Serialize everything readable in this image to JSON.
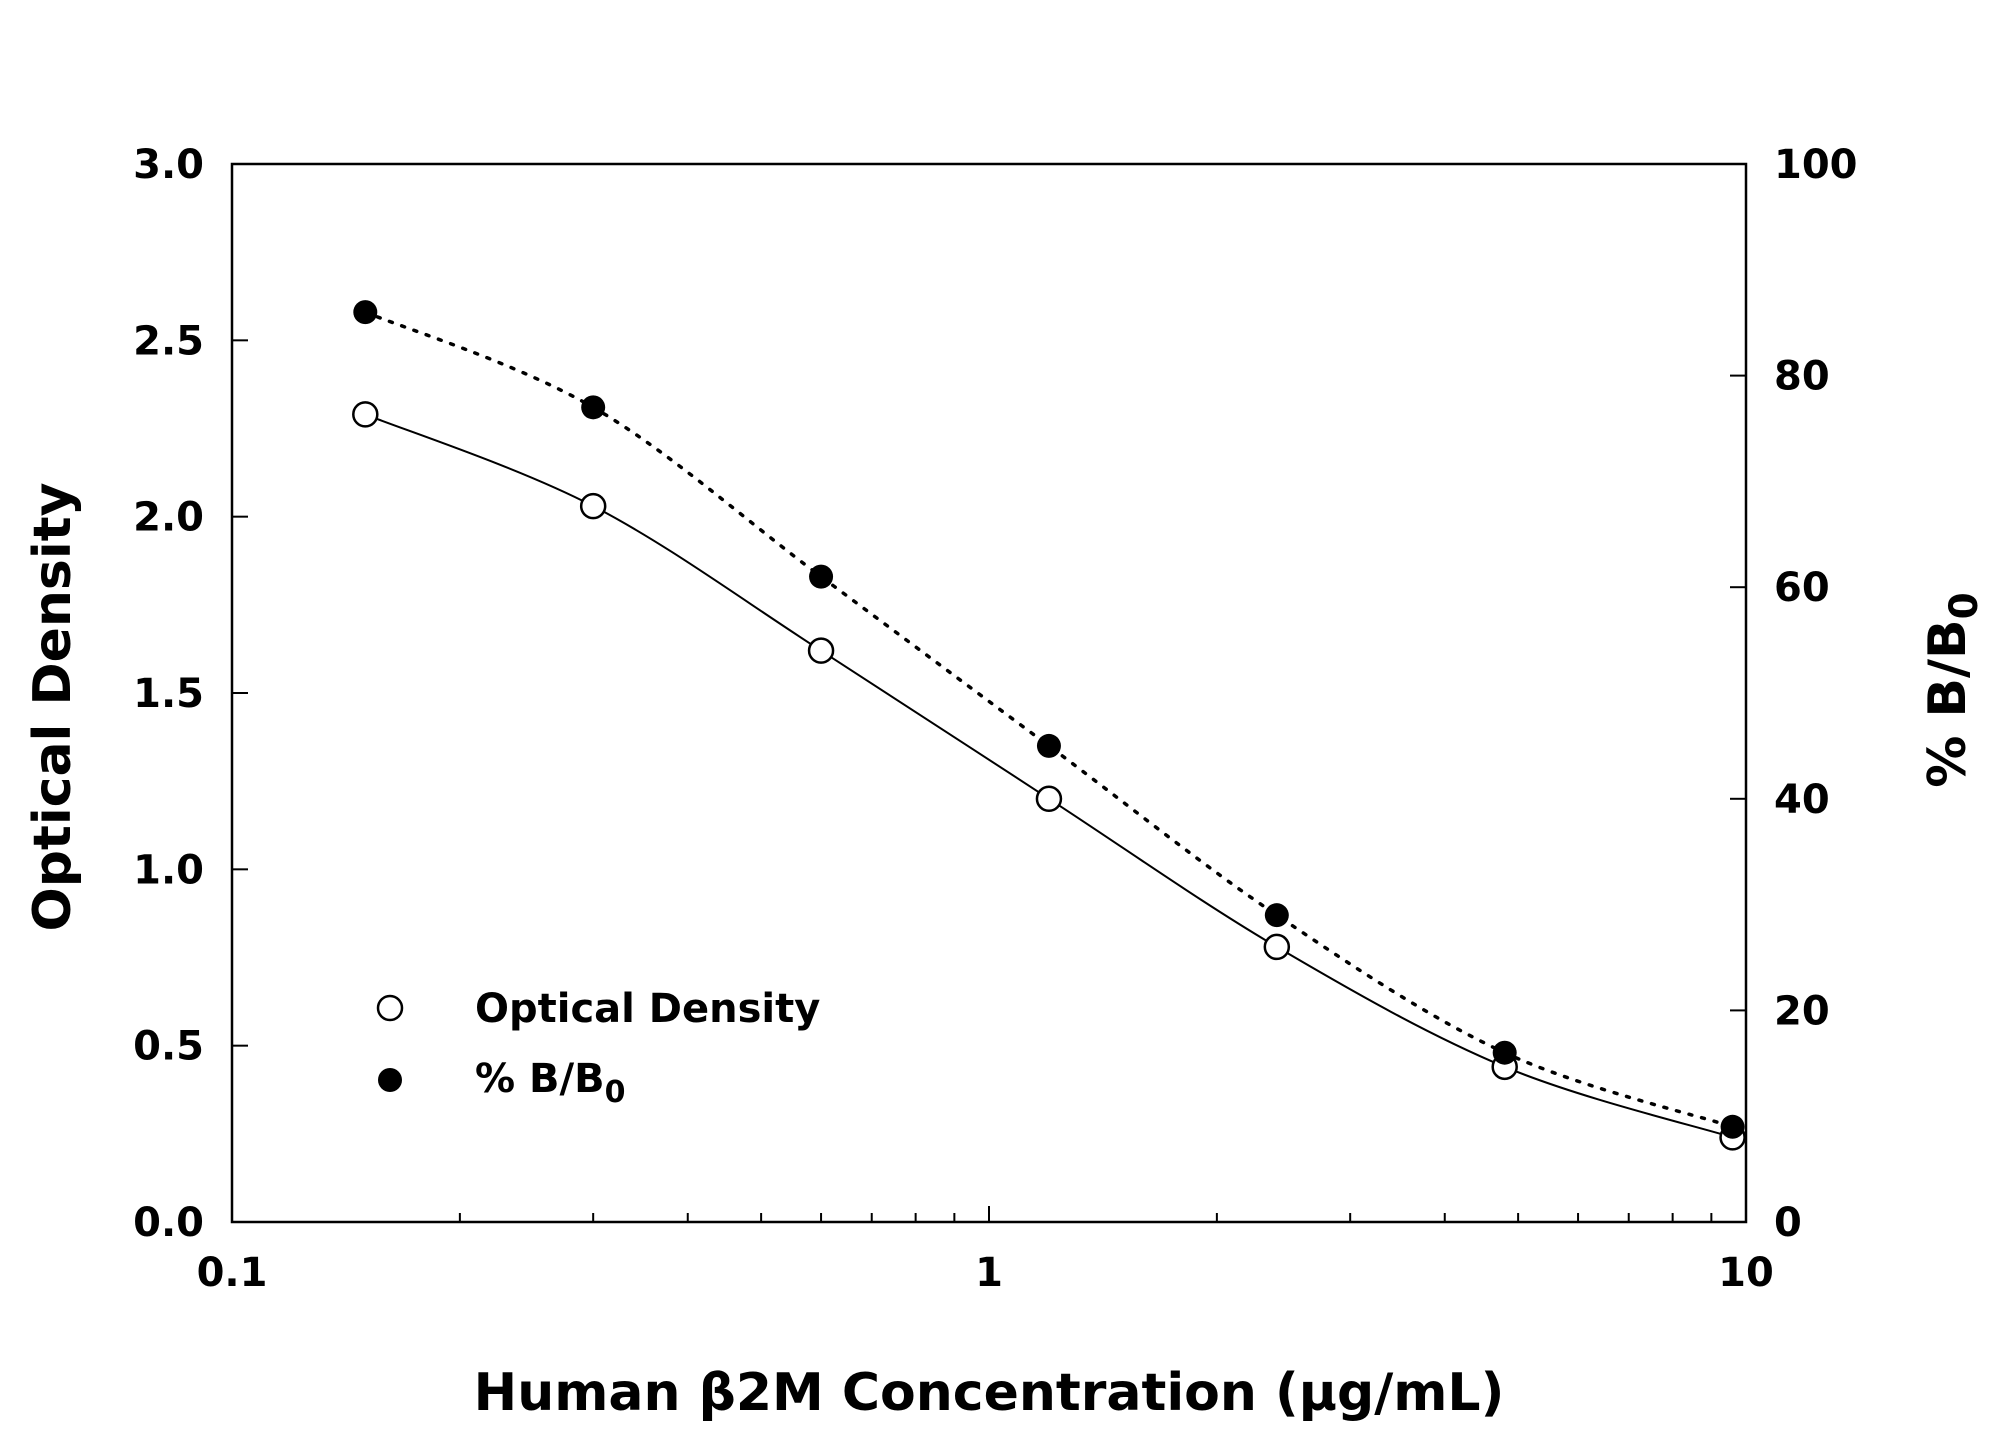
{
  "chart_data": {
    "type": "scatter",
    "x_scale": "log",
    "xlim": [
      0.1,
      10
    ],
    "ylim_left": [
      0,
      3.0
    ],
    "ylim_right": [
      0,
      100
    ],
    "xlabel": "Human β2M Concentration (μg/mL)",
    "ylabel_left": "Optical Density",
    "ylabel_right": {
      "prefix": "% B/B",
      "subscript": "0"
    },
    "x_tick_labels": [
      "0.1",
      "1",
      "10"
    ],
    "x_tick_values": [
      0.1,
      1,
      10
    ],
    "y_left_tick_labels": [
      "0.0",
      "0.5",
      "1.0",
      "1.5",
      "2.0",
      "2.5",
      "3.0"
    ],
    "y_left_tick_values": [
      0,
      0.5,
      1.0,
      1.5,
      2.0,
      2.5,
      3.0
    ],
    "y_right_tick_labels": [
      "0",
      "20",
      "40",
      "60",
      "80",
      "100"
    ],
    "y_right_tick_values": [
      0,
      20,
      40,
      60,
      80,
      100
    ],
    "grid": false,
    "legend_position": "bottom-left",
    "series": [
      {
        "name": "Optical Density",
        "axis": "left",
        "marker": "open-circle",
        "line": "solid",
        "x": [
          0.15,
          0.3,
          0.6,
          1.2,
          2.4,
          4.8,
          9.6
        ],
        "y": [
          2.29,
          2.03,
          1.62,
          1.2,
          0.78,
          0.44,
          0.24
        ]
      },
      {
        "name": "% B/B0",
        "name_prefix": "% B/B",
        "name_subscript": "0",
        "axis": "right",
        "marker": "filled-circle",
        "line": "dotted",
        "x": [
          0.15,
          0.3,
          0.6,
          1.2,
          2.4,
          4.8,
          9.6
        ],
        "y": [
          86,
          77,
          61,
          45,
          29,
          16,
          9
        ]
      }
    ]
  }
}
